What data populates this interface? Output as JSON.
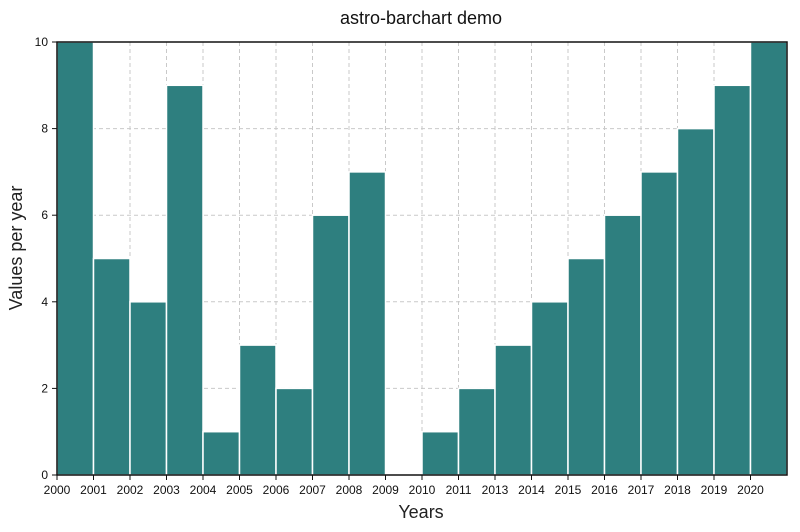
{
  "chart_data": {
    "type": "bar",
    "title": "astro-barchart demo",
    "xlabel": "Years",
    "ylabel": "Values per year",
    "categories": [
      "2000",
      "2001",
      "2002",
      "2003",
      "2004",
      "2005",
      "2006",
      "2007",
      "2008",
      "2009",
      "2010",
      "2011",
      "2013",
      "2014",
      "2015",
      "2016",
      "2017",
      "2018",
      "2019",
      "2020"
    ],
    "values": [
      10,
      5,
      4,
      9,
      1,
      3,
      2,
      6,
      7,
      0,
      1,
      2,
      3,
      4,
      5,
      6,
      7,
      8,
      9,
      10
    ],
    "ylim": [
      0,
      10
    ],
    "yticks": [
      "0",
      "2",
      "4",
      "6",
      "8",
      "10"
    ],
    "grid": true,
    "legend": "none",
    "bar_color": "#2e7f7f"
  }
}
